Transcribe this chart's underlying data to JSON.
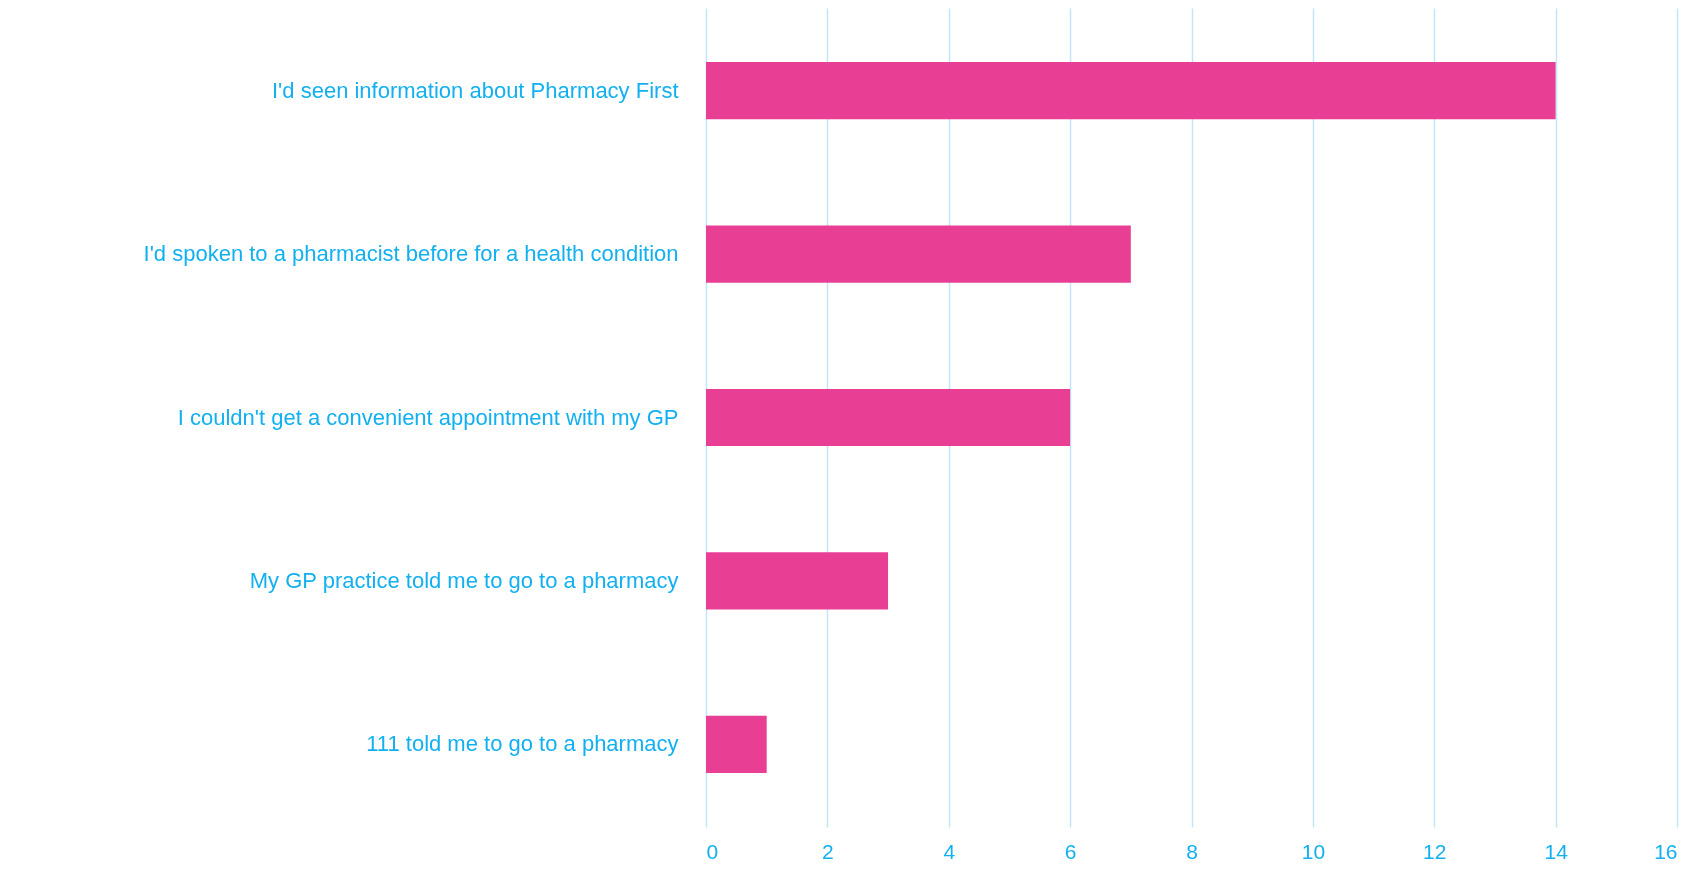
{
  "chart_data": {
    "type": "bar",
    "orientation": "horizontal",
    "categories": [
      "I'd seen information about Pharmacy First",
      "I'd spoken to a pharmacist before for a health condition",
      "I couldn't get a convenient appointment with my GP",
      "My GP practice told me to go to a pharmacy",
      "111 told me to go to a pharmacy"
    ],
    "values": [
      14,
      7,
      6,
      3,
      1
    ],
    "color": "#e83e94",
    "xlim": [
      0,
      16
    ],
    "xticks": [
      0,
      2,
      4,
      6,
      8,
      10,
      12,
      14,
      16
    ],
    "grid": "x"
  }
}
